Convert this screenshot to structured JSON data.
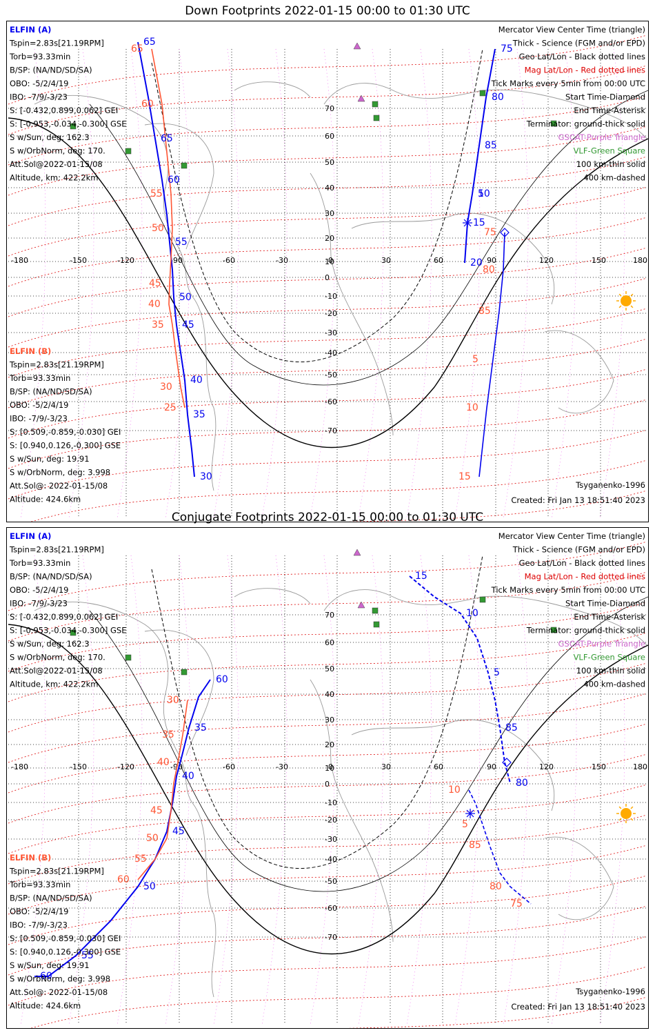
{
  "panels": [
    {
      "title": "Down Footprints 2022-01-15 00:00 to 01:30 UTC",
      "left_a": [
        "ELFIN (A)",
        "Tspin=2.83s[21.19RPM]",
        "Torb=93.33min",
        "B/SP: (NA/ND/SD/SA)",
        "OBO: -5/2/4/19",
        "IBO: -7/9/-3/23",
        "S: [-0.432,0.899,0.062] GEI",
        "S: [-0.953,-0.034,-0.300] GSE",
        "S w/Sun, deg: 162.3",
        "S w/OrbNorm, deg: 170.",
        "Att.Sol@2022-01-15/08",
        "Altitude, km: 422.2km"
      ],
      "left_b": [
        "ELFIN (B)",
        "Tspin=2.83s[21.19RPM]",
        "Torb=93.33min",
        "B/SP: (NA/ND/SD/SA)",
        "OBO: -5/2/4/19",
        "IBO: -7/9/-3/23",
        "S: [0.509,-0.859,-0.030] GEI",
        "S: [0.940,0.126,-0.300] GSE",
        "S w/Sun, deg: 19.91",
        "S w/OrbNorm, deg: 3.998",
        "Att.Sol@: 2022-01-15/08",
        "Altitude: 424.6km"
      ],
      "right": [
        "Mercator View Center Time (triangle)",
        "Thick - Science (FGM and/or EPD)",
        "Geo Lat/Lon - Black dotted lines",
        "Mag Lat/Lon - Red dotted lines",
        "Tick Marks every 5min from 00:00 UTC",
        "Start Time-Diamond",
        "End Time-Asterisk",
        "Terminator: ground-thick solid",
        "GSCAT-Purple Triangle",
        "VLF-Green Square",
        "100 km-thin solid",
        "400 km-dashed"
      ],
      "model": "Tsyganenko-1996",
      "created": "Created: Fri Jan 13 18:51:40 2023",
      "ticks_a": [
        "65",
        "65",
        "60",
        "55",
        "50",
        "45",
        "40",
        "35",
        "30"
      ],
      "ticks_b": [
        "65",
        "60",
        "55",
        "50",
        "45",
        "40",
        "35",
        "30",
        "25"
      ],
      "ticks_a2": [
        "75",
        "80",
        "85",
        "5",
        "10",
        "15",
        "20"
      ],
      "ticks_b2": [
        "75",
        "80",
        "85",
        "5",
        "10",
        "15"
      ]
    },
    {
      "title": "Conjugate Footprints 2022-01-15 00:00 to 01:30 UTC",
      "left_a": [
        "ELFIN (A)",
        "Tspin=2.83s[21.19RPM]",
        "Torb=93.33min",
        "B/SP: (NA/ND/SD/SA)",
        "OBO: -5/2/4/19",
        "IBO: -7/9/-3/23",
        "S: [-0.432,0.899,0.062] GEI",
        "S: [-0.953,-0.034,-0.300] GSE",
        "S w/Sun, deg: 162.3",
        "S w/OrbNorm, deg: 170.",
        "Att.Sol@2022-01-15/08",
        "Altitude, km: 422.2km"
      ],
      "left_b": [
        "ELFIN (B)",
        "Tspin=2.83s[21.19RPM]",
        "Torb=93.33min",
        "B/SP: (NA/ND/SD/SA)",
        "OBO: -5/2/4/19",
        "IBO: -7/9/-3/23",
        "S: [0.509,-0.859,-0.030] GEI",
        "S: [0.940,0.126,-0.300] GSE",
        "S w/Sun, deg: 19.91",
        "S w/OrbNorm, deg: 3.998",
        "Att.Sol@: 2022-01-15/08",
        "Altitude: 424.6km"
      ],
      "right": [
        "Mercator View Center Time (triangle)",
        "Thick - Science (FGM and/or EPD)",
        "Geo Lat/Lon - Black dotted lines",
        "Mag Lat/Lon - Red dotted lines",
        "Tick Marks every 5min from 00:00 UTC",
        "Start Time-Diamond",
        "End Time-Asterisk",
        "Terminator: ground-thick solid",
        "GSCAT-Purple Triangle",
        "VLF-Green Square",
        "100 km-thin solid",
        "400 km-dashed"
      ],
      "model": "Tsyganenko-1996",
      "created": "Created: Fri Jan 13 18:51:40 2023",
      "ticks_a": [
        "60",
        "35",
        "40",
        "45",
        "50",
        "55",
        "60"
      ],
      "ticks_b": [
        "30",
        "35",
        "40",
        "45",
        "50",
        "55",
        "60"
      ],
      "ticks_a2": [
        "15",
        "10",
        "5",
        "85",
        "80"
      ],
      "ticks_b2": [
        "10",
        "5",
        "85",
        "80",
        "75"
      ]
    }
  ],
  "axes": {
    "lon_labels": [
      "-180",
      "-150",
      "-120",
      "-90",
      "-60",
      "-30",
      "0",
      "30",
      "60",
      "90",
      "120",
      "150",
      "180"
    ],
    "lat_labels": [
      "70",
      "60",
      "50",
      "40",
      "30",
      "20",
      "10",
      "0",
      "-10",
      "-20",
      "-30",
      "-40",
      "-50",
      "-60",
      "-70"
    ]
  },
  "colors": {
    "elfin_a": "#0000ee",
    "elfin_b": "#ff5533",
    "mag_grid": "#dd0000",
    "gscat": "#cc66cc",
    "vlf": "#339933",
    "sun": "#ffaa00"
  }
}
